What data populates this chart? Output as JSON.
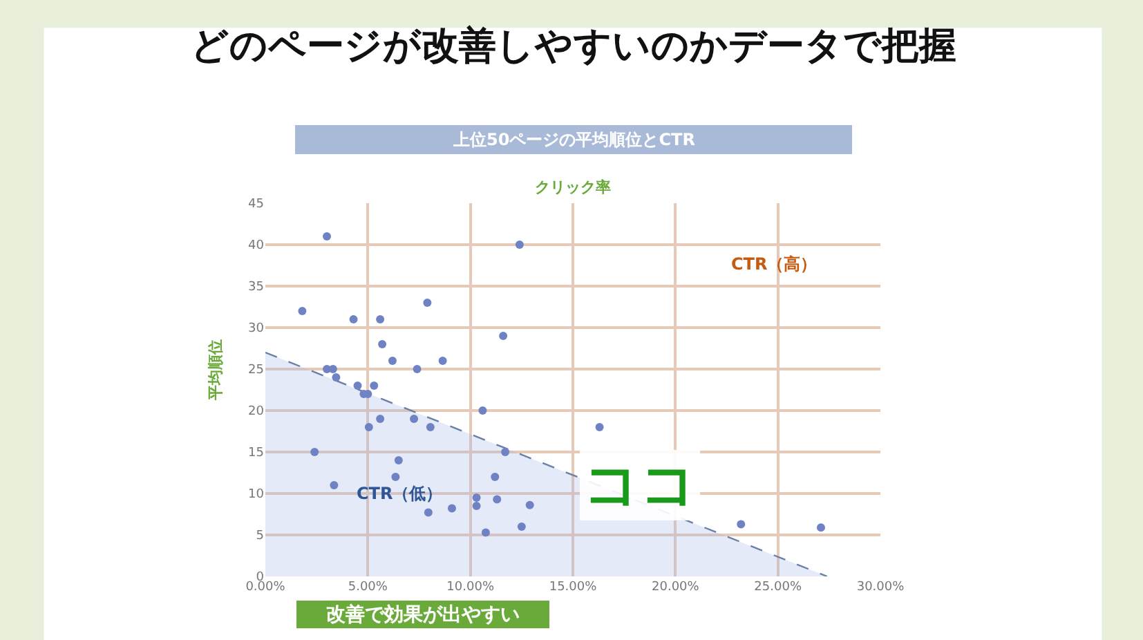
{
  "chart_data": {
    "type": "scatter",
    "title": "どのページが改善しやすいのかデータで把握",
    "subtitle": "上位50ページの平均順位とCTR",
    "xlabel": "クリック率",
    "ylabel": "平均順位",
    "annotations": [
      "CTR（高）",
      "CTR（低）",
      "改善で効果が出やすい",
      "ココ"
    ],
    "series": [
      {
        "type": "area",
        "color": "#6a7fa8",
        "line_style": "dashed",
        "marker": "none",
        "x": [
          0,
          27.4
        ],
        "values": [
          27,
          0
        ]
      },
      {
        "color": "#6f82c4",
        "marker": "circle",
        "x": [
          3.0,
          12.4,
          1.8,
          4.3,
          5.6,
          7.9,
          11.6,
          5.7,
          6.2,
          8.65,
          7.4,
          3.0,
          3.3,
          3.45,
          4.5,
          5.3,
          4.8,
          5.0,
          10.6,
          5.6,
          5.05,
          7.25,
          8.05,
          2.4,
          6.5,
          3.35,
          6.35,
          11.7,
          11.2,
          10.3,
          11.3,
          10.3,
          9.1,
          7.95,
          12.9,
          10.75,
          12.5,
          16.3,
          23.2,
          27.1
        ],
        "values": [
          41,
          40,
          32,
          31,
          31,
          33,
          29,
          28,
          26,
          26,
          25,
          25,
          25,
          24,
          23,
          23,
          22,
          22,
          20,
          19,
          18,
          19,
          18,
          15,
          14,
          11,
          12,
          15,
          12,
          9.5,
          9.3,
          8.5,
          8.2,
          7.7,
          8.6,
          5.3,
          6,
          18,
          6.3,
          5.9
        ]
      }
    ],
    "xlim": [
      0,
      30
    ],
    "xticks": [
      {
        "value": 0,
        "label": "0.00%"
      },
      {
        "value": 5,
        "label": "5.00%"
      },
      {
        "value": 10,
        "label": "10.00%"
      },
      {
        "value": 15,
        "label": "15.00%"
      },
      {
        "value": 20,
        "label": "20.00%"
      },
      {
        "value": 25,
        "label": "25.00%"
      },
      {
        "value": 30,
        "label": "30.00%"
      }
    ],
    "ylim": [
      0,
      45
    ],
    "yticks": [
      0,
      5,
      10,
      15,
      20,
      25,
      30,
      35,
      40,
      45
    ],
    "grid": true
  }
}
